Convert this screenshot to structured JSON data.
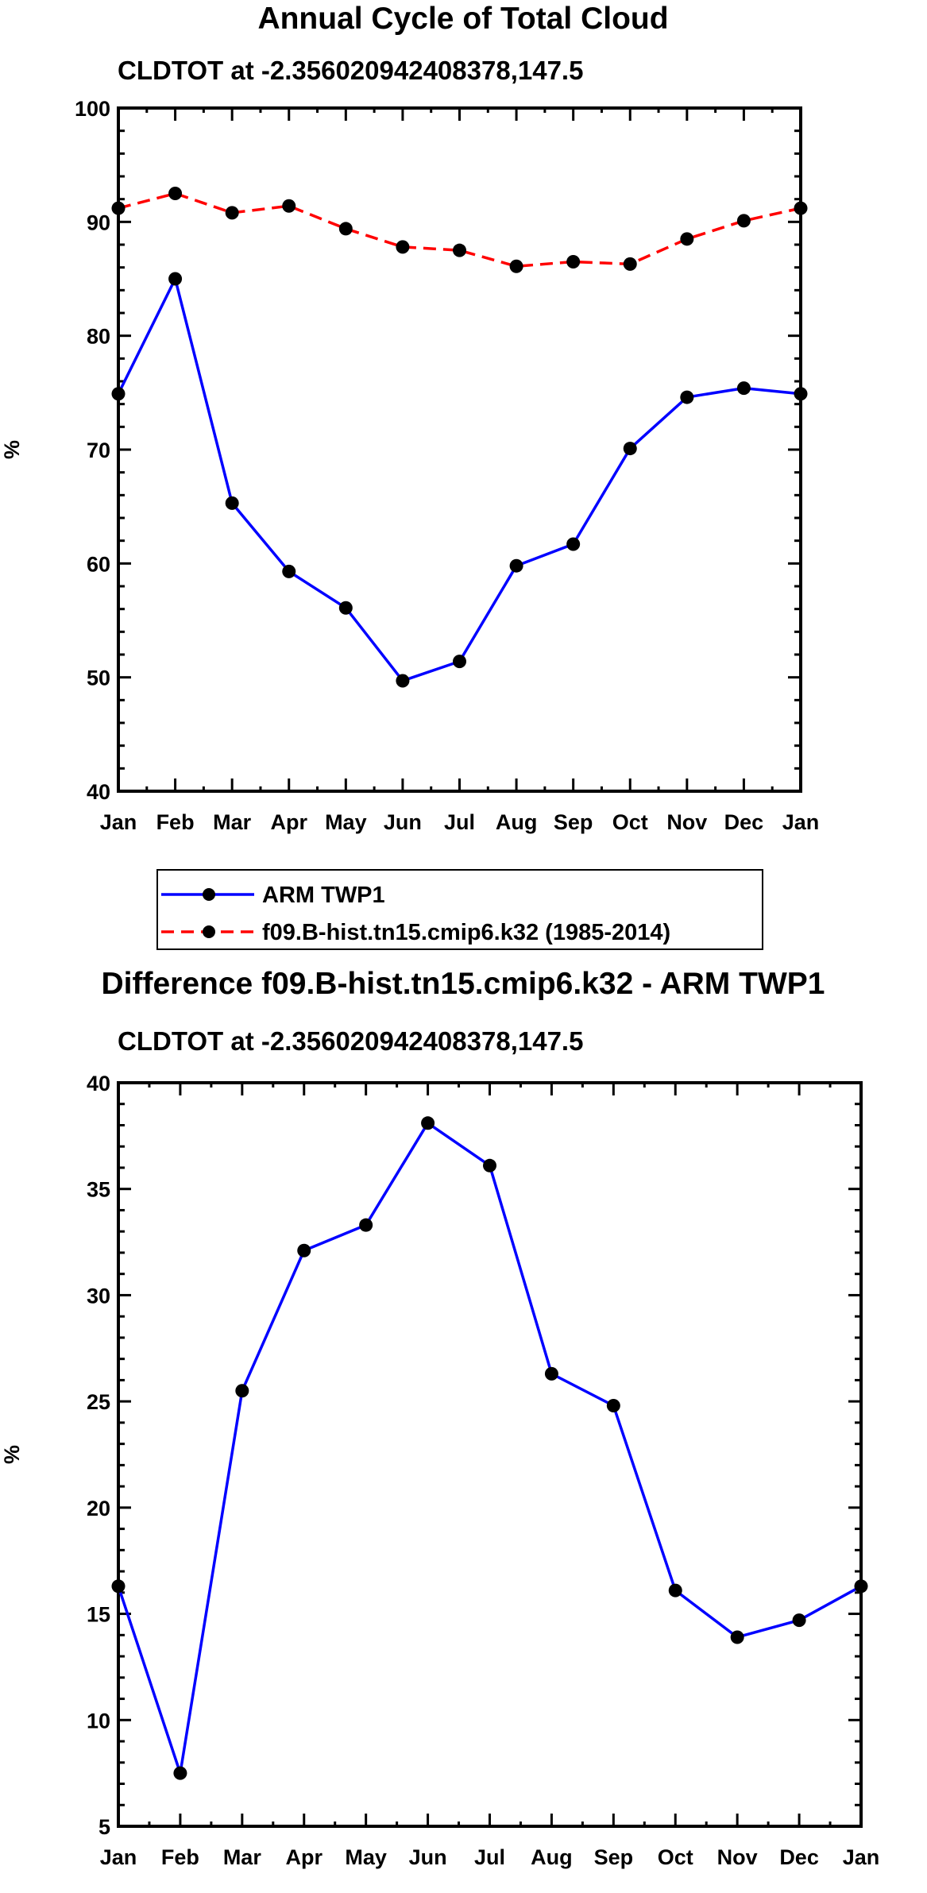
{
  "chart_data": [
    {
      "type": "line",
      "title": "Annual Cycle of Total Cloud",
      "subtitle": "CLDTOT at -2.356020942408378,147.5",
      "xlabel": "",
      "ylabel": "%",
      "categories": [
        "Jan",
        "Feb",
        "Mar",
        "Apr",
        "May",
        "Jun",
        "Jul",
        "Aug",
        "Sep",
        "Oct",
        "Nov",
        "Dec",
        "Jan"
      ],
      "ylim": [
        40,
        100
      ],
      "yticks": [
        40,
        50,
        60,
        70,
        80,
        90,
        100
      ],
      "series": [
        {
          "name": "ARM TWP1",
          "color": "#0000ff",
          "dash": "solid",
          "values": [
            74.9,
            85.0,
            65.3,
            59.3,
            56.1,
            49.7,
            51.4,
            59.8,
            61.7,
            70.1,
            74.6,
            75.4,
            74.9
          ]
        },
        {
          "name": "f09.B-hist.tn15.cmip6.k32 (1985-2014)",
          "color": "#ff0000",
          "dash": "dashed",
          "values": [
            91.2,
            92.5,
            90.8,
            91.4,
            89.4,
            87.8,
            87.5,
            86.1,
            86.5,
            86.3,
            88.5,
            90.1,
            91.2
          ]
        }
      ]
    },
    {
      "type": "line",
      "title": "Difference f09.B-hist.tn15.cmip6.k32 - ARM TWP1",
      "subtitle": "CLDTOT at -2.356020942408378,147.5",
      "xlabel": "",
      "ylabel": "%",
      "categories": [
        "Jan",
        "Feb",
        "Mar",
        "Apr",
        "May",
        "Jun",
        "Jul",
        "Aug",
        "Sep",
        "Oct",
        "Nov",
        "Dec",
        "Jan"
      ],
      "ylim": [
        5,
        40
      ],
      "yticks": [
        5,
        10,
        15,
        20,
        25,
        30,
        35,
        40
      ],
      "series": [
        {
          "name": "Difference",
          "color": "#0000ff",
          "dash": "solid",
          "values": [
            16.3,
            7.5,
            25.5,
            32.1,
            33.3,
            38.1,
            36.1,
            26.3,
            24.8,
            16.1,
            13.9,
            14.7,
            16.3
          ]
        }
      ]
    }
  ]
}
